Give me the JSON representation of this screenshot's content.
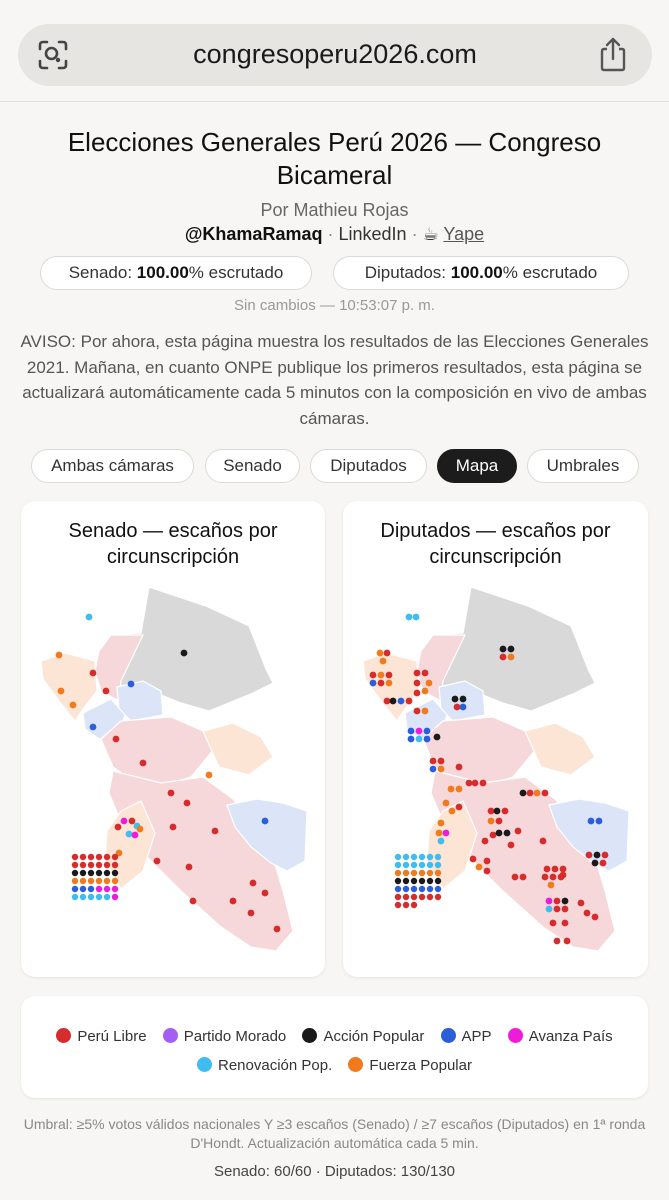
{
  "browser": {
    "url": "congresoperu2026.com"
  },
  "header": {
    "title": "Elecciones Generales Perú 2026 — Congreso Bicameral",
    "byline": "Por Mathieu Rojas",
    "twitter": "@KhamaRamaq",
    "separator": "·",
    "linkedin": "LinkedIn",
    "yape": "Yape"
  },
  "status": {
    "senado_label": "Senado:",
    "senado_value": "100.00",
    "senado_suffix": "% escrutado",
    "diputados_label": "Diputados:",
    "diputados_value": "100.00",
    "diputados_suffix": "% escrutado",
    "updated": "Sin cambios — 10:53:07 p. m."
  },
  "notice": "AVISO: Por ahora, esta página muestra los resultados de las Elecciones Generales 2021. Mañana, en cuanto ONPE publique los primeros resultados, esta página se actualizará automáticamente cada 5 minutos con la composición en vivo de ambas cámaras.",
  "tabs": [
    {
      "label": "Ambas cámaras",
      "active": false
    },
    {
      "label": "Senado",
      "active": false
    },
    {
      "label": "Diputados",
      "active": false
    },
    {
      "label": "Mapa",
      "active": true
    },
    {
      "label": "Umbrales",
      "active": false
    }
  ],
  "maps": {
    "senado_title": "Senado — escaños por circunscripción",
    "diputados_title": "Diputados — escaños por circunscripción"
  },
  "parties": [
    {
      "name": "Perú Libre",
      "color": "#d62c2c"
    },
    {
      "name": "Partido Morado",
      "color": "#a55df2"
    },
    {
      "name": "Acción Popular",
      "color": "#1a1a1a"
    },
    {
      "name": "APP",
      "color": "#2b5fd9"
    },
    {
      "name": "Avanza País",
      "color": "#ee1cd8"
    },
    {
      "name": "Renovación Pop.",
      "color": "#3fbdf0"
    },
    {
      "name": "Fuerza Popular",
      "color": "#f07a1c"
    }
  ],
  "region_colors": {
    "north_gray": "#d9d9d9",
    "red_region": "#f6d7da",
    "orange_region": "#fce5d4",
    "blue_region": "#dbe5f7"
  },
  "footer": {
    "note": "Umbral: ≥5% votos válidos nacionales Y ≥3 escaños (Senado) / ≥7 escaños (Diputados) en 1ª ronda D'Hondt. Actualización automática cada 5 min.",
    "counts": "Senado: 60/60 · Diputados: 130/130"
  }
}
